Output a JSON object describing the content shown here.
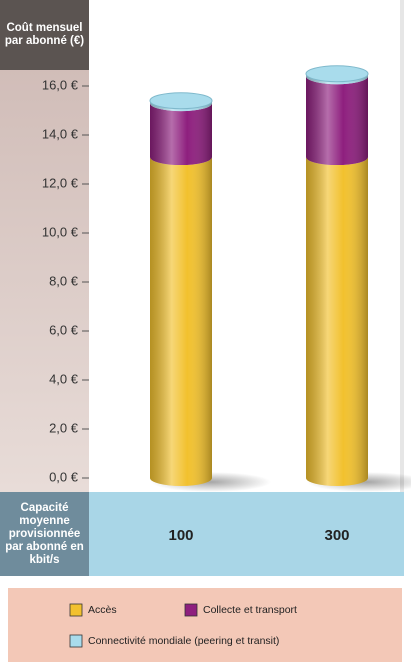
{
  "chart_data": {
    "type": "stacked-cylinder",
    "y_label": "Coût mensuel par abonné (€)",
    "x_label": "Capacité moyenne provisionnée par abonné en kbit/s",
    "categories": [
      "100",
      "300"
    ],
    "series": [
      {
        "name": "Accès",
        "color": "#f2c12e",
        "values": [
          13.1,
          13.1
        ]
      },
      {
        "name": "Collecte et transport",
        "color": "#8e1f7e",
        "values": [
          2.2,
          3.3
        ]
      },
      {
        "name": "Connectivité mondiale (peering et transit)",
        "color": "#a9dcec",
        "values": [
          0.1,
          0.1
        ]
      }
    ],
    "ylim": [
      0,
      17
    ],
    "yticks": [
      {
        "value": 0,
        "label": "0,0 €"
      },
      {
        "value": 2,
        "label": "2,0 €"
      },
      {
        "value": 4,
        "label": "4,0 €"
      },
      {
        "value": 6,
        "label": "6,0 €"
      },
      {
        "value": 8,
        "label": "8,0 €"
      },
      {
        "value": 10,
        "label": "10,0 €"
      },
      {
        "value": 12,
        "label": "12,0 €"
      },
      {
        "value": 14,
        "label": "14,0 €"
      },
      {
        "value": 16,
        "label": "16,0 €"
      }
    ]
  }
}
